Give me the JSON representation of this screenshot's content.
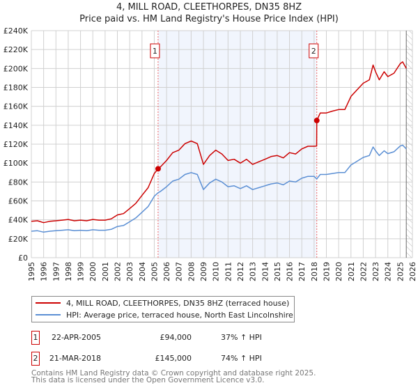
{
  "chart_data": {
    "type": "line",
    "title": "4, MILL ROAD, CLEETHORPES, DN35 8HZ",
    "subtitle": "Price paid vs. HM Land Registry's House Price Index (HPI)",
    "xlim": [
      1995,
      2026
    ],
    "ylim": [
      0,
      240000
    ],
    "x_ticks": [
      "1995",
      "1996",
      "1997",
      "1998",
      "1999",
      "2000",
      "2001",
      "2002",
      "2003",
      "2004",
      "2005",
      "2006",
      "2007",
      "2008",
      "2009",
      "2010",
      "2011",
      "2012",
      "2013",
      "2014",
      "2015",
      "2016",
      "2017",
      "2018",
      "2019",
      "2020",
      "2021",
      "2022",
      "2023",
      "2024",
      "2025",
      "2026"
    ],
    "y_ticks": [
      {
        "v": 0,
        "label": "£0"
      },
      {
        "v": 20000,
        "label": "£20K"
      },
      {
        "v": 40000,
        "label": "£40K"
      },
      {
        "v": 60000,
        "label": "£60K"
      },
      {
        "v": 80000,
        "label": "£80K"
      },
      {
        "v": 100000,
        "label": "£100K"
      },
      {
        "v": 120000,
        "label": "£120K"
      },
      {
        "v": 140000,
        "label": "£140K"
      },
      {
        "v": 160000,
        "label": "£160K"
      },
      {
        "v": 180000,
        "label": "£180K"
      },
      {
        "v": 200000,
        "label": "£200K"
      },
      {
        "v": 220000,
        "label": "£220K"
      },
      {
        "v": 240000,
        "label": "£240K"
      }
    ],
    "grid": true,
    "shaded_range": [
      2005.31,
      2018.22
    ],
    "future_hatch_from": 2025.5,
    "series": [
      {
        "name": "4, MILL ROAD, CLEETHORPES, DN35 8HZ (terraced house)",
        "color": "#cc0000",
        "x": [
          1995,
          1995.5,
          1996,
          1996.5,
          1997,
          1997.5,
          1998,
          1998.5,
          1999,
          1999.5,
          2000,
          2000.5,
          2001,
          2001.5,
          2002,
          2002.5,
          2003,
          2003.5,
          2004,
          2004.5,
          2005,
          2005.31,
          2005.5,
          2006,
          2006.5,
          2007,
          2007.5,
          2008,
          2008.5,
          2009,
          2009.5,
          2010,
          2010.5,
          2011,
          2011.5,
          2012,
          2012.5,
          2013,
          2013.5,
          2014,
          2014.5,
          2015,
          2015.5,
          2016,
          2016.5,
          2017,
          2017.5,
          2018,
          2018.21,
          2018.22,
          2018.5,
          2019,
          2019.5,
          2020,
          2020.5,
          2021,
          2021.5,
          2022,
          2022.5,
          2022.8,
          2023,
          2023.3,
          2023.7,
          2024,
          2024.5,
          2025,
          2025.2,
          2025.5
        ],
        "y": [
          38400,
          39000,
          37000,
          38400,
          39000,
          39700,
          40400,
          39000,
          39700,
          39000,
          40400,
          39700,
          39700,
          41100,
          45200,
          46600,
          52000,
          57500,
          65800,
          74000,
          89000,
          94000,
          96000,
          102800,
          111000,
          113700,
          120600,
          123300,
          120600,
          98600,
          108000,
          113700,
          109600,
          102800,
          104000,
          100000,
          104000,
          98600,
          101400,
          104000,
          106900,
          108000,
          105500,
          111000,
          109600,
          115000,
          117800,
          117800,
          118000,
          145000,
          153000,
          153000,
          155000,
          156600,
          156600,
          170500,
          177500,
          184400,
          188000,
          203600,
          196600,
          188000,
          196600,
          191400,
          195000,
          205000,
          207000,
          200000
        ]
      },
      {
        "name": "HPI: Average price, terraced house, North East Lincolnshire",
        "color": "#5b8fd4",
        "x": [
          1995,
          1995.5,
          1996,
          1996.5,
          1997,
          1997.5,
          1998,
          1998.5,
          1999,
          1999.5,
          2000,
          2000.5,
          2001,
          2001.5,
          2002,
          2002.5,
          2003,
          2003.5,
          2004,
          2004.5,
          2005,
          2005.31,
          2005.5,
          2006,
          2006.5,
          2007,
          2007.5,
          2008,
          2008.5,
          2009,
          2009.5,
          2010,
          2010.5,
          2011,
          2011.5,
          2012,
          2012.5,
          2013,
          2013.5,
          2014,
          2014.5,
          2015,
          2015.5,
          2016,
          2016.5,
          2017,
          2017.5,
          2018,
          2018.22,
          2018.5,
          2019,
          2019.5,
          2020,
          2020.5,
          2021,
          2021.5,
          2022,
          2022.5,
          2022.8,
          2023,
          2023.3,
          2023.7,
          2024,
          2024.5,
          2025,
          2025.2,
          2025.5
        ],
        "y": [
          28000,
          28500,
          27000,
          28000,
          28500,
          29000,
          29500,
          28500,
          29000,
          28500,
          29500,
          29000,
          29000,
          30000,
          33000,
          34000,
          38000,
          42000,
          48000,
          54000,
          65000,
          68600,
          70000,
          75000,
          81000,
          83000,
          88000,
          90000,
          88000,
          72000,
          79000,
          83000,
          80000,
          75000,
          76000,
          73000,
          76000,
          72000,
          74000,
          76000,
          78000,
          79000,
          77000,
          81000,
          80000,
          84000,
          86000,
          86000,
          83300,
          88000,
          88000,
          89000,
          90000,
          90000,
          98000,
          102000,
          106000,
          108000,
          117000,
          113000,
          108000,
          113000,
          110000,
          112000,
          118000,
          119000,
          115000
        ]
      }
    ],
    "sales": [
      {
        "label": "1",
        "x": 2005.31,
        "price": 94000,
        "date": "22-APR-2005",
        "price_text": "£94,000",
        "hpi_text": "37% ↑ HPI"
      },
      {
        "label": "2",
        "x": 2018.22,
        "price": 145000,
        "date": "21-MAR-2018",
        "price_text": "£145,000",
        "hpi_text": "74% ↑ HPI"
      }
    ],
    "legend_position": "bottom"
  },
  "footer": {
    "line1": "Contains HM Land Registry data © Crown copyright and database right 2025.",
    "line2": "This data is licensed under the Open Government Licence v3.0."
  }
}
